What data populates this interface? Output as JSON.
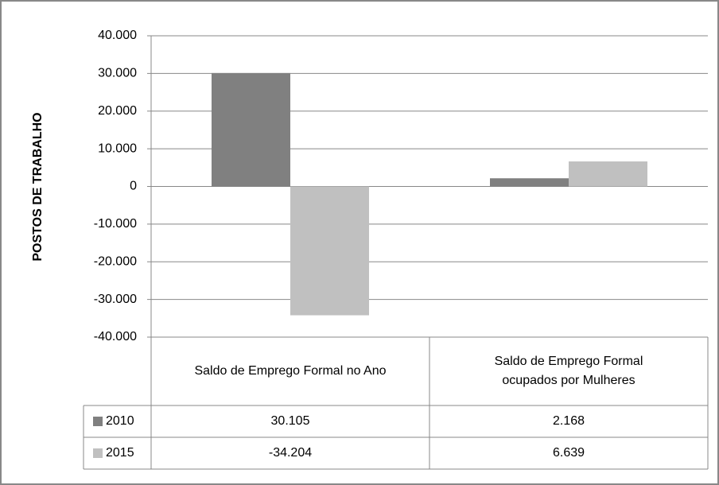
{
  "chart_data": {
    "type": "bar",
    "y_label": "POSTOS DE TRABALHO",
    "categories": [
      "Saldo de Emprego Formal no Ano",
      "Saldo de Emprego Formal ocupados por Mulheres"
    ],
    "series": [
      {
        "name": "2010",
        "color": "#808080",
        "values": [
          30105,
          2168
        ],
        "value_labels": [
          "30.105",
          "2.168"
        ]
      },
      {
        "name": "2015",
        "color": "#c0c0c0",
        "values": [
          -34204,
          6639
        ],
        "value_labels": [
          "-34.204",
          "6.639"
        ]
      }
    ],
    "ylim": [
      -40000,
      40000
    ],
    "yticks": [
      {
        "value": -40000,
        "label": "-40.000"
      },
      {
        "value": -30000,
        "label": "-30.000"
      },
      {
        "value": -20000,
        "label": "-20.000"
      },
      {
        "value": -10000,
        "label": "-10.000"
      },
      0,
      {
        "value": 10000,
        "label": "10.000"
      },
      {
        "value": 20000,
        "label": "20.000"
      },
      {
        "value": 30000,
        "label": "30.000"
      },
      {
        "value": 40000,
        "label": "40.000"
      }
    ],
    "grid": true,
    "data_table": true
  }
}
